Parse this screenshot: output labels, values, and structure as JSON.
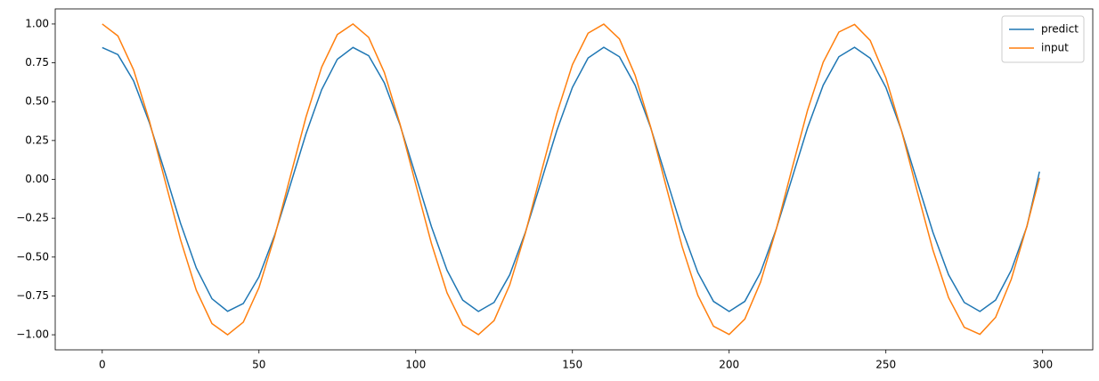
{
  "chart_data": {
    "type": "line",
    "x": [
      0,
      5,
      10,
      15,
      20,
      25,
      30,
      35,
      40,
      45,
      50,
      55,
      60,
      65,
      70,
      75,
      80,
      85,
      90,
      95,
      100,
      105,
      110,
      115,
      120,
      125,
      130,
      135,
      140,
      145,
      150,
      155,
      160,
      165,
      170,
      175,
      180,
      185,
      190,
      195,
      200,
      205,
      210,
      215,
      220,
      225,
      230,
      235,
      240,
      245,
      250,
      255,
      260,
      265,
      270,
      275,
      280,
      285,
      290,
      295,
      299
    ],
    "series": [
      {
        "name": "predict",
        "color": "#1f77b4",
        "values": [
          0.848,
          0.803,
          0.634,
          0.367,
          0.046,
          -0.284,
          -0.57,
          -0.768,
          -0.849,
          -0.799,
          -0.627,
          -0.359,
          -0.036,
          0.293,
          0.577,
          0.773,
          0.849,
          0.796,
          0.621,
          0.35,
          0.025,
          -0.303,
          -0.585,
          -0.777,
          -0.85,
          -0.792,
          -0.614,
          -0.34,
          -0.015,
          0.313,
          0.592,
          0.781,
          0.85,
          0.789,
          0.606,
          0.331,
          0.004,
          -0.322,
          -0.599,
          -0.785,
          -0.85,
          -0.785,
          -0.599,
          -0.321,
          0.004,
          0.331,
          0.606,
          0.789,
          0.85,
          0.78,
          0.592,
          0.313,
          -0.015,
          -0.34,
          -0.614,
          -0.792,
          -0.85,
          -0.777,
          -0.585,
          -0.303,
          0.05
        ]
      },
      {
        "name": "input",
        "color": "#ff7f0e",
        "values": [
          1.0,
          0.923,
          0.705,
          0.379,
          -0.006,
          -0.39,
          -0.713,
          -0.928,
          -1.0,
          -0.919,
          -0.697,
          -0.368,
          0.018,
          0.401,
          0.722,
          0.932,
          1.0,
          0.914,
          0.688,
          0.356,
          -0.03,
          -0.411,
          -0.73,
          -0.936,
          -0.999,
          -0.909,
          -0.679,
          -0.345,
          0.042,
          0.422,
          0.738,
          0.941,
          0.999,
          0.904,
          0.67,
          0.334,
          -0.053,
          -0.433,
          -0.746,
          -0.945,
          -0.998,
          -0.899,
          -0.662,
          -0.323,
          0.065,
          0.444,
          0.754,
          0.948,
          0.997,
          0.894,
          0.653,
          0.312,
          -0.077,
          -0.454,
          -0.761,
          -0.952,
          -0.997,
          -0.888,
          -0.643,
          -0.3,
          0.01
        ]
      }
    ],
    "xlim": [
      -15,
      316
    ],
    "ylim": [
      -1.097,
      1.097
    ],
    "xticks": [
      0,
      50,
      100,
      150,
      200,
      250,
      300
    ],
    "yticks": [
      {
        "value": -1.0,
        "label": "−1.00"
      },
      {
        "value": -0.75,
        "label": "−0.75"
      },
      {
        "value": -0.5,
        "label": "−0.50"
      },
      {
        "value": -0.25,
        "label": "−0.25"
      },
      {
        "value": 0,
        "label": "0.00"
      },
      {
        "value": 0.25,
        "label": "0.25"
      },
      {
        "value": 0.5,
        "label": "0.50"
      },
      {
        "value": 0.75,
        "label": "0.75"
      },
      {
        "value": 1.0,
        "label": "1.00"
      }
    ],
    "legend": "upper right"
  }
}
